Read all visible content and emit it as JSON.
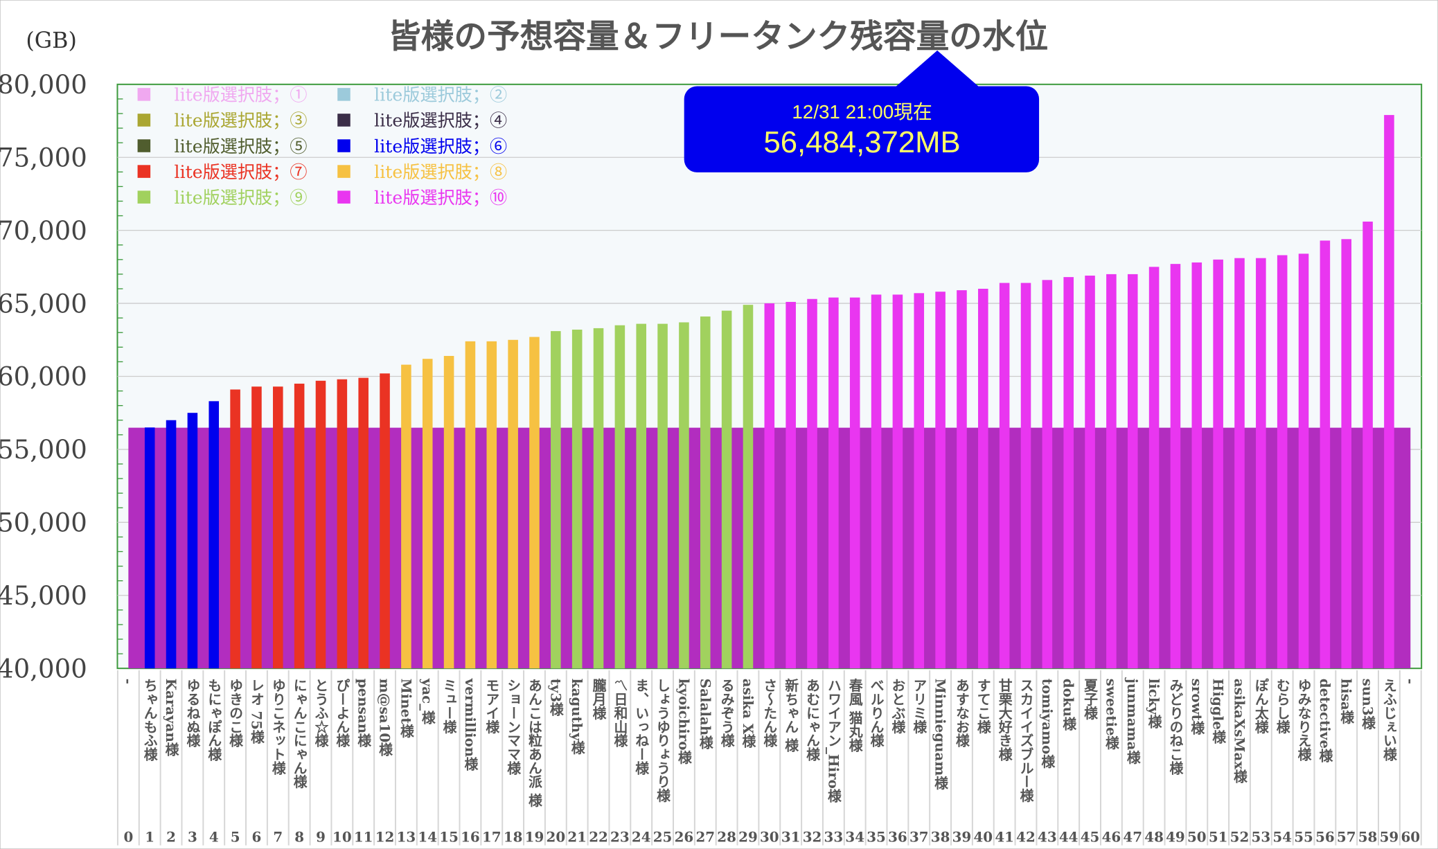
{
  "chart_data": {
    "type": "bar",
    "title": "皆様の予想容量＆フリータンク残容量の水位",
    "ylabel": "(GB)",
    "xlabel": "",
    "ylim": [
      40000,
      80000
    ],
    "yticks": [
      "40,000",
      "45,000",
      "50,000",
      "55,000",
      "60,000",
      "65,000",
      "70,000",
      "75,000",
      "80,000"
    ],
    "ytick_values": [
      40000,
      45000,
      50000,
      55000,
      60000,
      65000,
      70000,
      75000,
      80000
    ],
    "grid": true,
    "legend_placement": "top-left",
    "legend": [
      {
        "label": "lite版選択肢；①",
        "color": "#f0a8f0"
      },
      {
        "label": "lite版選択肢；②",
        "color": "#9ccadb"
      },
      {
        "label": "lite版選択肢；③",
        "color": "#aaa632"
      },
      {
        "label": "lite版選択肢；④",
        "color": "#3b2e48"
      },
      {
        "label": "lite版選択肢；⑤",
        "color": "#505d2e"
      },
      {
        "label": "lite版選択肢；⑥",
        "color": "#0000ee"
      },
      {
        "label": "lite版選択肢；⑦",
        "color": "#ea3323"
      },
      {
        "label": "lite版選択肢；⑧",
        "color": "#f6c142"
      },
      {
        "label": "lite版選択肢；⑨",
        "color": "#a1d15e"
      },
      {
        "label": "lite版選択肢；⑩",
        "color": "#e936f0"
      }
    ],
    "water_level": 56484,
    "water_color": "#b22dbf",
    "callout": {
      "time": "12/31 21:00現在",
      "value": "56,484,372MB"
    },
    "categories": [
      {
        "idx": "0",
        "name": "-",
        "value": null,
        "group": 0
      },
      {
        "idx": "1",
        "name": "ちゃんもふ様",
        "value": 56500,
        "group": 6
      },
      {
        "idx": "2",
        "name": "Karayan様",
        "value": 57000,
        "group": 6
      },
      {
        "idx": "3",
        "name": "ゆるねぬ様",
        "value": 57500,
        "group": 6
      },
      {
        "idx": "4",
        "name": "もにゃぽん様",
        "value": 58300,
        "group": 6
      },
      {
        "idx": "5",
        "name": "ゆきのこ様",
        "value": 59100,
        "group": 7
      },
      {
        "idx": "6",
        "name": "レオ 75様",
        "value": 59300,
        "group": 7
      },
      {
        "idx": "7",
        "name": "ゆりこネット様",
        "value": 59300,
        "group": 7
      },
      {
        "idx": "8",
        "name": "にゃんこにゃん様",
        "value": 59500,
        "group": 7
      },
      {
        "idx": "9",
        "name": "とうふ☆様",
        "value": 59700,
        "group": 7
      },
      {
        "idx": "10",
        "name": "ぴーよん様",
        "value": 59800,
        "group": 7
      },
      {
        "idx": "11",
        "name": "pensan様",
        "value": 59900,
        "group": 7
      },
      {
        "idx": "12",
        "name": "m@sa10様",
        "value": 60200,
        "group": 7
      },
      {
        "idx": "13",
        "name": "Minet様",
        "value": 60800,
        "group": 8
      },
      {
        "idx": "14",
        "name": "yac_様",
        "value": 61200,
        "group": 8
      },
      {
        "idx": "15",
        "name": "ミュー様",
        "value": 61400,
        "group": 8
      },
      {
        "idx": "16",
        "name": "vermillion様",
        "value": 62400,
        "group": 8
      },
      {
        "idx": "17",
        "name": "モアイ様",
        "value": 62400,
        "group": 8
      },
      {
        "idx": "18",
        "name": "ショーンママ様",
        "value": 62500,
        "group": 8
      },
      {
        "idx": "19",
        "name": "あんこは粒あん派 様",
        "value": 62700,
        "group": 8
      },
      {
        "idx": "20",
        "name": "ty3様",
        "value": 63100,
        "group": 9
      },
      {
        "idx": "21",
        "name": "kaguthy様",
        "value": 63200,
        "group": 9
      },
      {
        "idx": "22",
        "name": "朧月様",
        "value": 63300,
        "group": 9
      },
      {
        "idx": "23",
        "name": "〽日和山様",
        "value": 63500,
        "group": 9
      },
      {
        "idx": "24",
        "name": "ま、いっねー様",
        "value": 63600,
        "group": 9
      },
      {
        "idx": "25",
        "name": "しょうゆりょうり様",
        "value": 63600,
        "group": 9
      },
      {
        "idx": "26",
        "name": "kyoichiro様",
        "value": 63700,
        "group": 9
      },
      {
        "idx": "27",
        "name": "Salalah様",
        "value": 64100,
        "group": 9
      },
      {
        "idx": "28",
        "name": "るみぞう様",
        "value": 64500,
        "group": 9
      },
      {
        "idx": "29",
        "name": "asika X様",
        "value": 64900,
        "group": 9
      },
      {
        "idx": "30",
        "name": "さ～たん様",
        "value": 65000,
        "group": 10
      },
      {
        "idx": "31",
        "name": "新ちゃん 様",
        "value": 65100,
        "group": 10
      },
      {
        "idx": "32",
        "name": "あむにゃん様",
        "value": 65300,
        "group": 10
      },
      {
        "idx": "33",
        "name": "ハワイアン_Hiro様",
        "value": 65400,
        "group": 10
      },
      {
        "idx": "34",
        "name": "春風 猫丸様",
        "value": 65400,
        "group": 10
      },
      {
        "idx": "35",
        "name": "べルりん様",
        "value": 65600,
        "group": 10
      },
      {
        "idx": "36",
        "name": "おとぶ様",
        "value": 65600,
        "group": 10
      },
      {
        "idx": "37",
        "name": "アリミ様",
        "value": 65700,
        "group": 10
      },
      {
        "idx": "38",
        "name": "Minnieguam様",
        "value": 65800,
        "group": 10
      },
      {
        "idx": "39",
        "name": "あすなお様",
        "value": 65900,
        "group": 10
      },
      {
        "idx": "40",
        "name": "すてこ様",
        "value": 66000,
        "group": 10
      },
      {
        "idx": "41",
        "name": "甘栗大好き様",
        "value": 66400,
        "group": 10
      },
      {
        "idx": "42",
        "name": "スカイイズブルー様",
        "value": 66400,
        "group": 10
      },
      {
        "idx": "43",
        "name": "tomiyamo様",
        "value": 66600,
        "group": 10
      },
      {
        "idx": "44",
        "name": "doku様",
        "value": 66800,
        "group": 10
      },
      {
        "idx": "45",
        "name": "夏子様",
        "value": 66900,
        "group": 10
      },
      {
        "idx": "46",
        "name": "sweetie様",
        "value": 67000,
        "group": 10
      },
      {
        "idx": "47",
        "name": "junmama様",
        "value": 67000,
        "group": 10
      },
      {
        "idx": "48",
        "name": "licky様",
        "value": 67500,
        "group": 10
      },
      {
        "idx": "49",
        "name": "みどりのねこ様",
        "value": 67700,
        "group": 10
      },
      {
        "idx": "50",
        "name": "srowt様",
        "value": 67800,
        "group": 10
      },
      {
        "idx": "51",
        "name": "Higgle様",
        "value": 68000,
        "group": 10
      },
      {
        "idx": "52",
        "name": "asikaXsMax様",
        "value": 68100,
        "group": 10
      },
      {
        "idx": "53",
        "name": "ぽん太様",
        "value": 68100,
        "group": 10
      },
      {
        "idx": "54",
        "name": "むらし様",
        "value": 68300,
        "group": 10
      },
      {
        "idx": "55",
        "name": "ゆみなりえ様",
        "value": 68400,
        "group": 10
      },
      {
        "idx": "56",
        "name": "detective様",
        "value": 69300,
        "group": 10
      },
      {
        "idx": "57",
        "name": "hisa様",
        "value": 69400,
        "group": 10
      },
      {
        "idx": "58",
        "name": "sun3様",
        "value": 70600,
        "group": 10
      },
      {
        "idx": "59",
        "name": "えふじぇい様",
        "value": 77900,
        "group": 10
      },
      {
        "idx": "60",
        "name": "-",
        "value": null,
        "group": 0
      }
    ]
  }
}
